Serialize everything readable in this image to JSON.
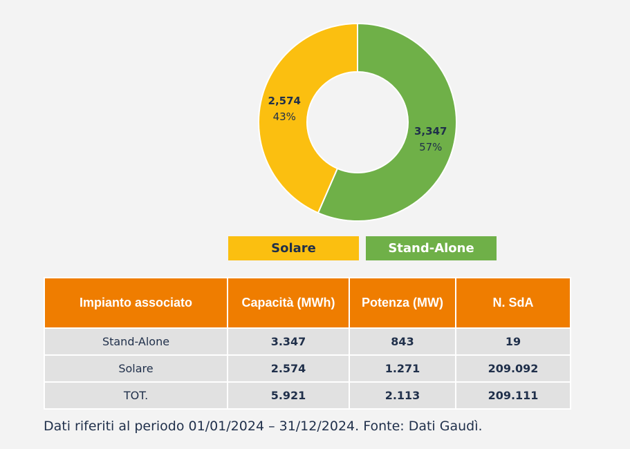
{
  "chart_data": {
    "type": "pie",
    "variant": "donut",
    "categories": [
      "Stand-Alone",
      "Solare"
    ],
    "values": [
      3347,
      2574
    ],
    "value_labels": [
      "3,347",
      "2,574"
    ],
    "percent_labels": [
      "57%",
      "43%"
    ],
    "colors": [
      "#6fb048",
      "#fbbf10"
    ],
    "legend": [
      "Solare",
      "Stand-Alone"
    ],
    "legend_position": "bottom"
  },
  "table": {
    "headers": [
      "Impianto associato",
      "Capacità (MWh)",
      "Potenza (MW)",
      "N. SdA"
    ],
    "rows": [
      [
        "Stand-Alone",
        "3.347",
        "843",
        "19"
      ],
      [
        "Solare",
        "2.574",
        "1.271",
        "209.092"
      ],
      [
        "TOT.",
        "5.921",
        "2.113",
        "209.111"
      ]
    ]
  },
  "footnote": "Dati riferiti al periodo 01/01/2024 – 31/12/2024. Fonte: Dati Gaudì."
}
